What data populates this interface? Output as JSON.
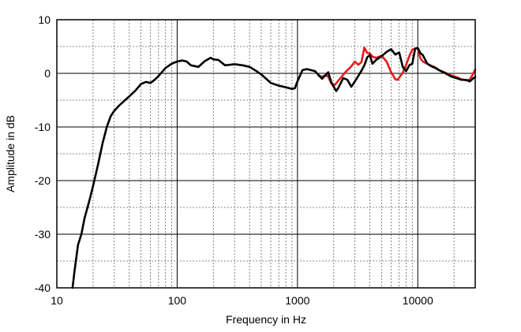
{
  "chart_data": {
    "type": "line",
    "title": "",
    "xlabel": "Frequency in Hz",
    "ylabel": "Amplitude in dB",
    "x_scale": "log",
    "xlim": [
      10,
      30000
    ],
    "ylim": [
      -40,
      10
    ],
    "grid": true,
    "legend": "none",
    "x_ticks": [
      {
        "value": 10,
        "label": "10"
      },
      {
        "value": 100,
        "label": "100"
      },
      {
        "value": 1000,
        "label": "1000"
      },
      {
        "value": 10000,
        "label": "10000"
      }
    ],
    "y_ticks": [
      {
        "value": 10,
        "label": "10"
      },
      {
        "value": 0,
        "label": "0"
      },
      {
        "value": -10,
        "label": "-10"
      },
      {
        "value": -20,
        "label": "-20"
      },
      {
        "value": -30,
        "label": "-30"
      },
      {
        "value": -40,
        "label": "-40"
      }
    ],
    "series": [
      {
        "color": "#000000",
        "x": [
          13.5,
          14,
          15,
          16,
          17,
          18,
          19,
          20,
          22,
          24,
          26,
          28,
          30,
          33,
          36,
          40,
          45,
          50,
          55,
          60,
          65,
          70,
          80,
          90,
          100,
          110,
          120,
          130,
          150,
          170,
          190,
          200,
          220,
          250,
          300,
          350,
          400,
          450,
          500,
          600,
          700,
          800,
          900,
          950,
          1000,
          1100,
          1200,
          1400,
          1600,
          1800,
          1900,
          2000,
          2100,
          2200,
          2400,
          2600,
          2800,
          3000,
          3200,
          3400,
          3600,
          3800,
          4000,
          4200,
          4500,
          5000,
          5500,
          6000,
          6500,
          7000,
          7500,
          8000,
          8500,
          9000,
          9500,
          10000,
          10500,
          11000,
          12000,
          13000,
          14000,
          15000,
          17000,
          19000,
          21000,
          23000,
          25000,
          27000,
          29000,
          30000
        ],
        "y": [
          -40,
          -37,
          -32,
          -30,
          -27,
          -25,
          -23,
          -21,
          -17,
          -13,
          -10,
          -8,
          -7,
          -6,
          -5.2,
          -4.3,
          -3.2,
          -2,
          -1.6,
          -1.8,
          -1.2,
          -0.5,
          1,
          1.8,
          2.2,
          2.4,
          2.2,
          1.5,
          1.2,
          2.3,
          2.9,
          2.6,
          2.5,
          1.5,
          1.7,
          1.5,
          1.2,
          0.5,
          -0.2,
          -1.8,
          -2.3,
          -2.6,
          -2.9,
          -2.8,
          -1.5,
          0.6,
          0.8,
          0.4,
          -1,
          0.2,
          -1.5,
          -2.5,
          -3.3,
          -2.6,
          -0.9,
          -1.2,
          -2.5,
          -1.5,
          -0.5,
          0.5,
          1.5,
          3,
          3.4,
          1.8,
          2.5,
          3.2,
          4,
          4.5,
          3.5,
          3.9,
          1.2,
          0.4,
          1.5,
          1.8,
          4.6,
          4.7,
          3.8,
          3.4,
          1.8,
          1.3,
          1,
          0.6,
          0,
          -0.6,
          -0.9,
          -1.2,
          -1.2,
          -1.5,
          -0.9,
          -0.7
        ]
      },
      {
        "color": "#e8191c",
        "x": [
          1500,
          1600,
          1700,
          1800,
          1900,
          2000,
          2200,
          2500,
          2800,
          3000,
          3200,
          3400,
          3600,
          3800,
          4000,
          4200,
          4500,
          5000,
          5500,
          6000,
          6500,
          6800,
          7000,
          7500,
          8000,
          8500,
          9000,
          9500,
          10000,
          10500,
          11000,
          12000,
          13000,
          14000,
          15000,
          17000,
          19000,
          21000,
          23000,
          25000,
          27000,
          28500,
          30000
        ],
        "y": [
          -0.5,
          -0.6,
          -0.4,
          -0.6,
          -1.8,
          -2.4,
          -1.3,
          0.2,
          1.3,
          2.2,
          1.6,
          2.1,
          4.8,
          3.8,
          3.7,
          3.1,
          2.9,
          3.3,
          2.2,
          0.2,
          -1.1,
          -1.2,
          -0.8,
          0.1,
          1.6,
          3.2,
          4.4,
          4.6,
          4.8,
          2.8,
          2.2,
          1.8,
          1.4,
          1.1,
          0.6,
          0.1,
          -0.4,
          -0.7,
          -1.1,
          -1.3,
          -1.2,
          -0.3,
          0.7
        ]
      }
    ]
  }
}
